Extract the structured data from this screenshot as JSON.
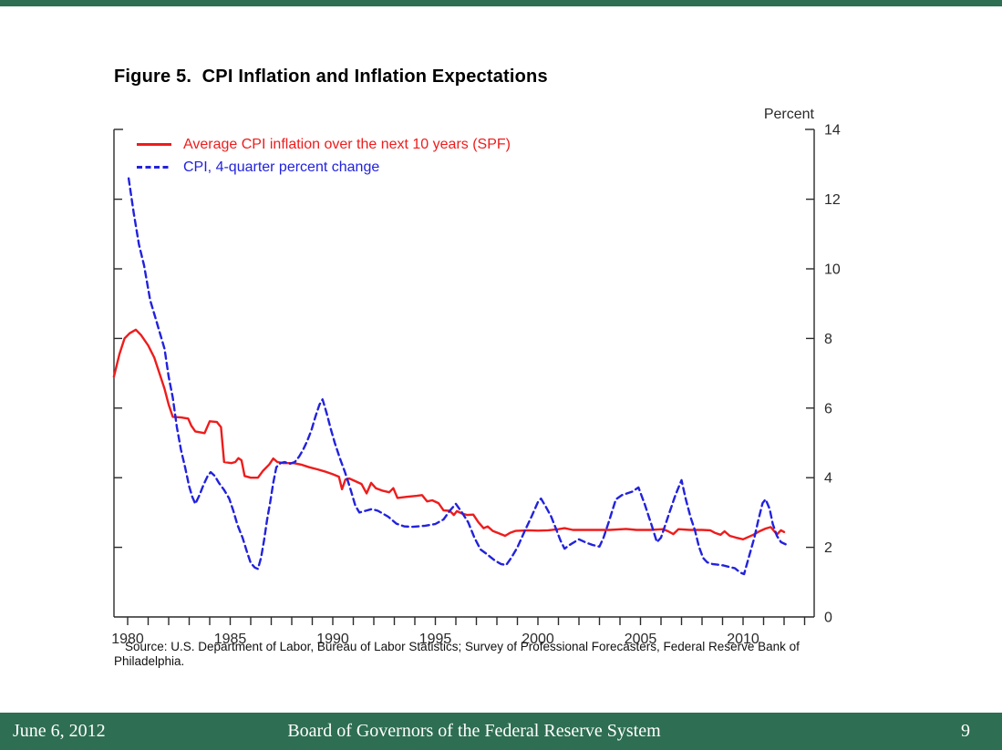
{
  "header": {
    "title": "Figure 5.  CPI Inflation and Inflation Expectations"
  },
  "colors": {
    "red_series": "#ee1c1c",
    "blue_series": "#2222dd",
    "footer_green": "#2e6e52",
    "axis": "#2a2a2a"
  },
  "chart_data": {
    "type": "line",
    "title": "Figure 5. CPI Inflation and Inflation Expectations",
    "xlabel": "",
    "ylabel": "Percent",
    "y_axis": {
      "unit_label": "Percent",
      "side": "right",
      "range": [
        0,
        14
      ],
      "ticks": [
        0,
        2,
        4,
        6,
        8,
        10,
        12,
        14
      ]
    },
    "x_axis": {
      "range": [
        1979.3,
        2013.5
      ],
      "labeled_ticks": [
        1980,
        1985,
        1990,
        1995,
        2000,
        2005,
        2010
      ],
      "minor_tick_start": 1980,
      "minor_tick_end": 2013,
      "minor_tick_step": 1
    },
    "grid": false,
    "legend_position": "top-left-inside",
    "series": [
      {
        "name": "Average CPI inflation over the next 10 years (SPF)",
        "style": "solid",
        "color": "#ee1c1c",
        "points": [
          [
            1979.33,
            6.9
          ],
          [
            1979.6,
            7.55
          ],
          [
            1979.85,
            8.0
          ],
          [
            1980.1,
            8.15
          ],
          [
            1980.4,
            8.25
          ],
          [
            1980.65,
            8.1
          ],
          [
            1981.0,
            7.8
          ],
          [
            1981.3,
            7.45
          ],
          [
            1981.55,
            7.0
          ],
          [
            1981.8,
            6.55
          ],
          [
            1982.0,
            6.1
          ],
          [
            1982.2,
            5.75
          ],
          [
            1982.6,
            5.73
          ],
          [
            1982.95,
            5.7
          ],
          [
            1983.1,
            5.5
          ],
          [
            1983.3,
            5.33
          ],
          [
            1983.75,
            5.28
          ],
          [
            1984.0,
            5.62
          ],
          [
            1984.35,
            5.6
          ],
          [
            1984.55,
            5.45
          ],
          [
            1984.7,
            4.45
          ],
          [
            1985.05,
            4.42
          ],
          [
            1985.25,
            4.45
          ],
          [
            1985.4,
            4.56
          ],
          [
            1985.55,
            4.5
          ],
          [
            1985.7,
            4.05
          ],
          [
            1986.0,
            4.0
          ],
          [
            1986.35,
            4.0
          ],
          [
            1986.6,
            4.2
          ],
          [
            1986.9,
            4.38
          ],
          [
            1987.1,
            4.55
          ],
          [
            1987.3,
            4.45
          ],
          [
            1987.6,
            4.42
          ],
          [
            1988.1,
            4.42
          ],
          [
            1988.5,
            4.37
          ],
          [
            1988.85,
            4.3
          ],
          [
            1989.25,
            4.24
          ],
          [
            1989.6,
            4.18
          ],
          [
            1990.0,
            4.1
          ],
          [
            1990.3,
            4.03
          ],
          [
            1990.45,
            3.67
          ],
          [
            1990.62,
            3.95
          ],
          [
            1990.8,
            3.98
          ],
          [
            1991.1,
            3.9
          ],
          [
            1991.4,
            3.82
          ],
          [
            1991.65,
            3.55
          ],
          [
            1991.87,
            3.85
          ],
          [
            1992.1,
            3.7
          ],
          [
            1992.4,
            3.63
          ],
          [
            1992.75,
            3.58
          ],
          [
            1992.95,
            3.7
          ],
          [
            1993.15,
            3.42
          ],
          [
            1993.6,
            3.45
          ],
          [
            1994.1,
            3.48
          ],
          [
            1994.35,
            3.5
          ],
          [
            1994.6,
            3.32
          ],
          [
            1994.85,
            3.35
          ],
          [
            1995.15,
            3.27
          ],
          [
            1995.4,
            3.06
          ],
          [
            1995.7,
            3.05
          ],
          [
            1995.9,
            2.93
          ],
          [
            1996.05,
            3.04
          ],
          [
            1996.3,
            2.97
          ],
          [
            1996.55,
            2.93
          ],
          [
            1996.85,
            2.94
          ],
          [
            1997.1,
            2.72
          ],
          [
            1997.35,
            2.55
          ],
          [
            1997.55,
            2.6
          ],
          [
            1997.8,
            2.47
          ],
          [
            1998.1,
            2.4
          ],
          [
            1998.4,
            2.33
          ],
          [
            1998.65,
            2.42
          ],
          [
            1998.9,
            2.47
          ],
          [
            1999.5,
            2.49
          ],
          [
            2000.0,
            2.48
          ],
          [
            2000.5,
            2.49
          ],
          [
            2001.0,
            2.52
          ],
          [
            2001.3,
            2.55
          ],
          [
            2001.7,
            2.5
          ],
          [
            2002.5,
            2.5
          ],
          [
            2003.5,
            2.5
          ],
          [
            2004.3,
            2.53
          ],
          [
            2004.8,
            2.5
          ],
          [
            2005.5,
            2.5
          ],
          [
            2006.1,
            2.52
          ],
          [
            2006.35,
            2.46
          ],
          [
            2006.6,
            2.38
          ],
          [
            2006.85,
            2.52
          ],
          [
            2007.4,
            2.5
          ],
          [
            2008.0,
            2.5
          ],
          [
            2008.4,
            2.49
          ],
          [
            2008.65,
            2.41
          ],
          [
            2008.9,
            2.36
          ],
          [
            2009.1,
            2.46
          ],
          [
            2009.35,
            2.33
          ],
          [
            2009.65,
            2.28
          ],
          [
            2010.0,
            2.23
          ],
          [
            2010.5,
            2.36
          ],
          [
            2010.8,
            2.46
          ],
          [
            2011.1,
            2.54
          ],
          [
            2011.35,
            2.58
          ],
          [
            2011.65,
            2.37
          ],
          [
            2011.85,
            2.49
          ],
          [
            2012.0,
            2.44
          ]
        ]
      },
      {
        "name": "CPI, 4-quarter percent change",
        "style": "dashed",
        "color": "#2222dd",
        "points": [
          [
            1980.05,
            12.6
          ],
          [
            1980.3,
            11.6
          ],
          [
            1980.55,
            10.7
          ],
          [
            1980.8,
            10.1
          ],
          [
            1981.1,
            9.1
          ],
          [
            1981.35,
            8.6
          ],
          [
            1981.6,
            8.1
          ],
          [
            1981.8,
            7.7
          ],
          [
            1982.0,
            6.9
          ],
          [
            1982.2,
            6.3
          ],
          [
            1982.4,
            5.45
          ],
          [
            1982.6,
            4.8
          ],
          [
            1982.8,
            4.3
          ],
          [
            1983.0,
            3.75
          ],
          [
            1983.15,
            3.45
          ],
          [
            1983.3,
            3.25
          ],
          [
            1983.5,
            3.5
          ],
          [
            1983.7,
            3.8
          ],
          [
            1983.9,
            4.05
          ],
          [
            1984.05,
            4.16
          ],
          [
            1984.25,
            4.05
          ],
          [
            1984.45,
            3.85
          ],
          [
            1984.7,
            3.65
          ],
          [
            1984.95,
            3.4
          ],
          [
            1985.15,
            3.05
          ],
          [
            1985.35,
            2.65
          ],
          [
            1985.6,
            2.28
          ],
          [
            1985.8,
            1.9
          ],
          [
            1986.0,
            1.55
          ],
          [
            1986.2,
            1.42
          ],
          [
            1986.35,
            1.38
          ],
          [
            1986.5,
            1.7
          ],
          [
            1986.65,
            2.2
          ],
          [
            1986.8,
            2.8
          ],
          [
            1986.95,
            3.3
          ],
          [
            1987.1,
            3.85
          ],
          [
            1987.25,
            4.3
          ],
          [
            1987.45,
            4.42
          ],
          [
            1987.65,
            4.45
          ],
          [
            1987.9,
            4.4
          ],
          [
            1988.15,
            4.45
          ],
          [
            1988.35,
            4.6
          ],
          [
            1988.55,
            4.8
          ],
          [
            1988.75,
            5.05
          ],
          [
            1988.95,
            5.35
          ],
          [
            1989.15,
            5.75
          ],
          [
            1989.35,
            6.1
          ],
          [
            1989.5,
            6.25
          ],
          [
            1989.7,
            5.85
          ],
          [
            1989.9,
            5.4
          ],
          [
            1990.1,
            5.0
          ],
          [
            1990.35,
            4.55
          ],
          [
            1990.6,
            4.15
          ],
          [
            1990.85,
            3.7
          ],
          [
            1991.1,
            3.2
          ],
          [
            1991.3,
            3.0
          ],
          [
            1991.6,
            3.05
          ],
          [
            1991.9,
            3.1
          ],
          [
            1992.2,
            3.05
          ],
          [
            1992.7,
            2.88
          ],
          [
            1993.1,
            2.68
          ],
          [
            1993.5,
            2.6
          ],
          [
            1993.9,
            2.59
          ],
          [
            1994.5,
            2.62
          ],
          [
            1995.0,
            2.67
          ],
          [
            1995.4,
            2.8
          ],
          [
            1995.7,
            3.05
          ],
          [
            1996.0,
            3.25
          ],
          [
            1996.3,
            3.0
          ],
          [
            1996.6,
            2.72
          ],
          [
            1996.9,
            2.28
          ],
          [
            1997.2,
            1.94
          ],
          [
            1997.5,
            1.81
          ],
          [
            1997.9,
            1.62
          ],
          [
            1998.2,
            1.52
          ],
          [
            1998.45,
            1.49
          ],
          [
            1998.7,
            1.7
          ],
          [
            1999.0,
            2.0
          ],
          [
            1999.35,
            2.46
          ],
          [
            1999.7,
            2.9
          ],
          [
            2000.0,
            3.3
          ],
          [
            2000.15,
            3.4
          ],
          [
            2000.4,
            3.15
          ],
          [
            2000.65,
            2.88
          ],
          [
            2000.9,
            2.5
          ],
          [
            2001.1,
            2.2
          ],
          [
            2001.3,
            1.96
          ],
          [
            2001.55,
            2.07
          ],
          [
            2001.8,
            2.16
          ],
          [
            2002.0,
            2.23
          ],
          [
            2002.3,
            2.15
          ],
          [
            2002.65,
            2.07
          ],
          [
            2003.0,
            2.02
          ],
          [
            2003.2,
            2.28
          ],
          [
            2003.45,
            2.72
          ],
          [
            2003.8,
            3.38
          ],
          [
            2004.1,
            3.5
          ],
          [
            2004.6,
            3.6
          ],
          [
            2004.9,
            3.72
          ],
          [
            2005.2,
            3.25
          ],
          [
            2005.55,
            2.62
          ],
          [
            2005.8,
            2.15
          ],
          [
            2006.0,
            2.28
          ],
          [
            2006.4,
            2.98
          ],
          [
            2006.7,
            3.5
          ],
          [
            2007.0,
            3.93
          ],
          [
            2007.2,
            3.4
          ],
          [
            2007.45,
            2.85
          ],
          [
            2007.65,
            2.5
          ],
          [
            2007.85,
            2.02
          ],
          [
            2008.05,
            1.7
          ],
          [
            2008.25,
            1.57
          ],
          [
            2008.5,
            1.52
          ],
          [
            2008.8,
            1.5
          ],
          [
            2009.05,
            1.48
          ],
          [
            2009.3,
            1.44
          ],
          [
            2009.6,
            1.4
          ],
          [
            2009.85,
            1.28
          ],
          [
            2010.05,
            1.23
          ],
          [
            2010.3,
            1.75
          ],
          [
            2010.55,
            2.28
          ],
          [
            2010.75,
            2.8
          ],
          [
            2010.95,
            3.27
          ],
          [
            2011.1,
            3.38
          ],
          [
            2011.3,
            3.1
          ],
          [
            2011.45,
            2.67
          ],
          [
            2011.65,
            2.33
          ],
          [
            2011.85,
            2.15
          ],
          [
            2012.1,
            2.08
          ]
        ]
      }
    ]
  },
  "source": {
    "text": "Source:  U.S. Department of Labor, Bureau of Labor Statistics; Survey of Professional Forecasters, Federal Reserve Bank of Philadelphia."
  },
  "footer": {
    "date": "June 6, 2012",
    "org": "Board of Governors of the Federal Reserve System",
    "page": "9"
  }
}
